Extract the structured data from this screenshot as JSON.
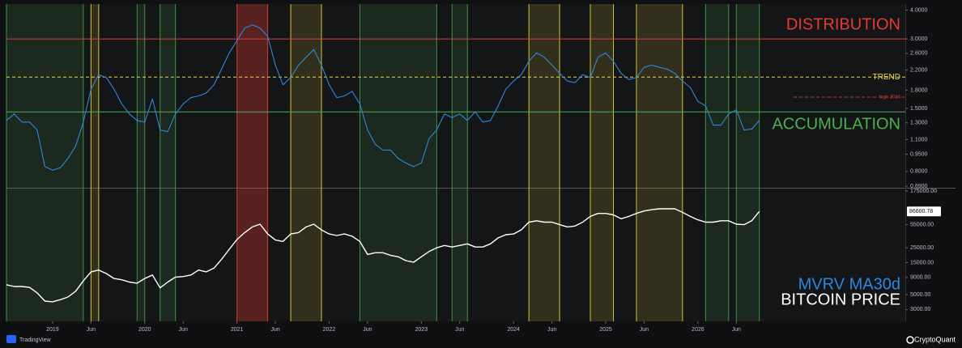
{
  "chart_data": [
    {
      "type": "line",
      "log_scale": true,
      "x": [
        "2018-07",
        "2018-08",
        "2018-09",
        "2018-10",
        "2018-11",
        "2018-12",
        "2019-01",
        "2019-02",
        "2019-03",
        "2019-04",
        "2019-05",
        "2019-06",
        "2019-07",
        "2019-08",
        "2019-09",
        "2019-10",
        "2019-11",
        "2019-12",
        "2020-01",
        "2020-02",
        "2020-03",
        "2020-04",
        "2020-05",
        "2020-06",
        "2020-07",
        "2020-08",
        "2020-09",
        "2020-10",
        "2020-11",
        "2020-12",
        "2021-01",
        "2021-02",
        "2021-03",
        "2021-04",
        "2021-05",
        "2021-06",
        "2021-07",
        "2021-08",
        "2021-09",
        "2021-10",
        "2021-11",
        "2021-12",
        "2022-01",
        "2022-02",
        "2022-03",
        "2022-04",
        "2022-05",
        "2022-06",
        "2022-07",
        "2022-08",
        "2022-09",
        "2022-10",
        "2022-11",
        "2022-12",
        "2023-01",
        "2023-02",
        "2023-03",
        "2023-04",
        "2023-05",
        "2023-06",
        "2023-07",
        "2023-08",
        "2023-09",
        "2023-10",
        "2023-11",
        "2023-12",
        "2024-01",
        "2024-02",
        "2024-03",
        "2024-04",
        "2024-05",
        "2024-06",
        "2024-07",
        "2024-08",
        "2024-09",
        "2024-10",
        "2024-11",
        "2024-12",
        "2025-01",
        "2025-02",
        "2025-03",
        "2025-04",
        "2025-05",
        "2025-06",
        "2025-07",
        "2025-08",
        "2025-09",
        "2025-10",
        "2025-11",
        "2025-12",
        "2026-01",
        "2026-02",
        "2026-03",
        "2026-04",
        "2026-05",
        "2026-06",
        "2026-07",
        "2026-08",
        "2026-09"
      ],
      "series": [
        {
          "name": "MVRV MA30d",
          "color": "#2e86de",
          "values": [
            1.33,
            1.42,
            1.31,
            1.31,
            1.21,
            0.84,
            0.81,
            0.83,
            0.91,
            1.03,
            1.31,
            1.82,
            2.1,
            2.04,
            1.82,
            1.57,
            1.42,
            1.33,
            1.31,
            1.65,
            1.21,
            1.19,
            1.42,
            1.57,
            1.67,
            1.7,
            1.75,
            1.9,
            2.22,
            2.61,
            2.95,
            3.34,
            3.45,
            3.34,
            3.08,
            2.31,
            1.9,
            2.04,
            2.31,
            2.5,
            2.7,
            2.31,
            1.9,
            1.67,
            1.7,
            1.78,
            1.57,
            1.21,
            1.05,
            0.99,
            0.99,
            0.91,
            0.87,
            0.84,
            0.87,
            1.11,
            1.21,
            1.42,
            1.37,
            1.42,
            1.33,
            1.45,
            1.31,
            1.33,
            1.54,
            1.82,
            1.97,
            2.1,
            2.4,
            2.61,
            2.5,
            2.31,
            2.13,
            1.97,
            1.94,
            2.1,
            2.04,
            2.5,
            2.61,
            2.4,
            2.13,
            2.0,
            2.04,
            2.26,
            2.31,
            2.26,
            2.22,
            2.13,
            1.97,
            1.85,
            1.61,
            1.54,
            1.27,
            1.27,
            1.42,
            1.48,
            1.21,
            1.22,
            1.33
          ]
        }
      ],
      "xlim": [
        "2018-07",
        "2028-04"
      ],
      "ylim": [
        0.68,
        4.25
      ],
      "yticks": [
        {
          "value": 4,
          "label": "4.0000"
        },
        {
          "value": 3,
          "label": "3.0000"
        },
        {
          "value": 2.6,
          "label": "2.6000"
        },
        {
          "value": 2.2,
          "label": "2.2000"
        },
        {
          "value": 1.8,
          "label": "1.8000"
        },
        {
          "value": 1.5,
          "label": "1.5000"
        },
        {
          "value": 1.3,
          "label": "1.3000"
        },
        {
          "value": 1.1,
          "label": "1.1000"
        },
        {
          "value": 0.95,
          "label": "0.9500"
        },
        {
          "value": 0.8,
          "label": "0.8000"
        },
        {
          "value": 0.69,
          "label": "0.6900"
        }
      ],
      "levels": [
        {
          "label": "DISTRIBUTION",
          "value": 3,
          "color": "#e53935",
          "dashed": false
        },
        {
          "label": "TREND",
          "value": 2.05,
          "color": "#e8d44d",
          "dashed": true
        },
        {
          "label": "high 2024",
          "value": 1.68,
          "color": "#b23a36",
          "dashed": true
        },
        {
          "label": "ACCUMULATION",
          "value": 1.45,
          "color": "#4caf50",
          "dashed": false
        }
      ],
      "zones": [
        {
          "start": "2018-07",
          "end": "2019-05",
          "color": "#4caf50"
        },
        {
          "start": "2019-06",
          "end": "2019-07",
          "color": "#ffeb3b"
        },
        {
          "start": "2019-12",
          "end": "2020-01",
          "color": "#4caf50"
        },
        {
          "start": "2020-03",
          "end": "2020-05",
          "color": "#4caf50"
        },
        {
          "start": "2021-01",
          "end": "2021-05",
          "color": "#f44336"
        },
        {
          "start": "2021-08",
          "end": "2021-12",
          "color": "#ffeb3b"
        },
        {
          "start": "2022-05",
          "end": "2023-03",
          "color": "#4caf50"
        },
        {
          "start": "2023-05",
          "end": "2023-07",
          "color": "#4caf50"
        },
        {
          "start": "2024-03",
          "end": "2024-07",
          "color": "#ffeb3b"
        },
        {
          "start": "2024-11",
          "end": "2025-02",
          "color": "#ffeb3b"
        },
        {
          "start": "2025-05",
          "end": "2025-11",
          "color": "#ffeb3b"
        },
        {
          "start": "2026-02",
          "end": "2026-05",
          "color": "#4caf50"
        },
        {
          "start": "2026-06",
          "end": "2026-09",
          "color": "#4caf50"
        }
      ]
    },
    {
      "type": "line",
      "log_scale": true,
      "x": [
        "2018-07",
        "2018-08",
        "2018-09",
        "2018-10",
        "2018-11",
        "2018-12",
        "2019-01",
        "2019-02",
        "2019-03",
        "2019-04",
        "2019-05",
        "2019-06",
        "2019-07",
        "2019-08",
        "2019-09",
        "2019-10",
        "2019-11",
        "2019-12",
        "2020-01",
        "2020-02",
        "2020-03",
        "2020-04",
        "2020-05",
        "2020-06",
        "2020-07",
        "2020-08",
        "2020-09",
        "2020-10",
        "2020-11",
        "2020-12",
        "2021-01",
        "2021-02",
        "2021-03",
        "2021-04",
        "2021-05",
        "2021-06",
        "2021-07",
        "2021-08",
        "2021-09",
        "2021-10",
        "2021-11",
        "2021-12",
        "2022-01",
        "2022-02",
        "2022-03",
        "2022-04",
        "2022-05",
        "2022-06",
        "2022-07",
        "2022-08",
        "2022-09",
        "2022-10",
        "2022-11",
        "2022-12",
        "2023-01",
        "2023-02",
        "2023-03",
        "2023-04",
        "2023-05",
        "2023-06",
        "2023-07",
        "2023-08",
        "2023-09",
        "2023-10",
        "2023-11",
        "2023-12",
        "2024-01",
        "2024-02",
        "2024-03",
        "2024-04",
        "2024-05",
        "2024-06",
        "2024-07",
        "2024-08",
        "2024-09",
        "2024-10",
        "2024-11",
        "2024-12",
        "2025-01",
        "2025-02",
        "2025-03",
        "2025-04",
        "2025-05",
        "2025-06",
        "2025-07",
        "2025-08",
        "2025-09",
        "2025-10",
        "2025-11",
        "2025-12",
        "2026-01",
        "2026-02",
        "2026-03",
        "2026-04",
        "2026-05",
        "2026-06",
        "2026-07",
        "2026-08",
        "2026-09"
      ],
      "series": [
        {
          "name": "BITCOIN PRICE",
          "color": "#ffffff",
          "values": [
            7000,
            6600,
            6600,
            6400,
            5300,
            4000,
            3900,
            4200,
            4600,
            5600,
            8000,
            10900,
            11600,
            10300,
            8700,
            8300,
            7700,
            7400,
            8700,
            9800,
            6300,
            7700,
            9100,
            9300,
            9800,
            11600,
            10900,
            12400,
            16800,
            23600,
            33000,
            42000,
            51000,
            56000,
            40000,
            32500,
            31000,
            40000,
            42000,
            51000,
            56000,
            46000,
            40000,
            38000,
            40000,
            37000,
            31000,
            19800,
            21000,
            21000,
            19200,
            18300,
            16000,
            15200,
            18300,
            21900,
            24900,
            27000,
            25600,
            27000,
            28500,
            25600,
            25600,
            28500,
            35000,
            39000,
            40000,
            46000,
            60000,
            63000,
            60000,
            60000,
            55000,
            51000,
            52500,
            60000,
            73000,
            81000,
            81000,
            77000,
            67500,
            73000,
            81000,
            88000,
            92000,
            95000,
            95000,
            95000,
            84000,
            73000,
            65000,
            60000,
            60000,
            63000,
            63000,
            56000,
            55000,
            63000,
            86600.78
          ]
        }
      ],
      "xlim": [
        "2018-07",
        "2028-04"
      ],
      "ylim": [
        2000,
        190000
      ],
      "yticks": [
        {
          "value": 175000,
          "label": "175000.00"
        },
        {
          "value": 55000,
          "label": "55000.00"
        },
        {
          "value": 25000,
          "label": "25000.00"
        },
        {
          "value": 15000,
          "label": "15000.00"
        },
        {
          "value": 9000,
          "label": "9000.00"
        },
        {
          "value": 5000,
          "label": "5000.00"
        },
        {
          "value": 3000,
          "label": "3000.00"
        }
      ],
      "xticks": [
        {
          "value": "2019-01",
          "label": "2019"
        },
        {
          "value": "2019-06",
          "label": "Jun"
        },
        {
          "value": "2020-01",
          "label": "2020"
        },
        {
          "value": "2020-06",
          "label": "Jun"
        },
        {
          "value": "2021-01",
          "label": "2021"
        },
        {
          "value": "2021-06",
          "label": "Jun"
        },
        {
          "value": "2022-01",
          "label": "2022"
        },
        {
          "value": "2022-06",
          "label": "Jun"
        },
        {
          "value": "2023-01",
          "label": "2023"
        },
        {
          "value": "2023-06",
          "label": "Jun"
        },
        {
          "value": "2024-01",
          "label": "2024"
        },
        {
          "value": "2024-06",
          "label": "Jun"
        },
        {
          "value": "2025-01",
          "label": "2025"
        },
        {
          "value": "2025-06",
          "label": "Jun"
        },
        {
          "value": "2026-01",
          "label": "2026"
        },
        {
          "value": "2026-06",
          "label": "Jun"
        }
      ]
    }
  ],
  "footer": {
    "left": "TradingView",
    "right": "CryptoQuant"
  }
}
